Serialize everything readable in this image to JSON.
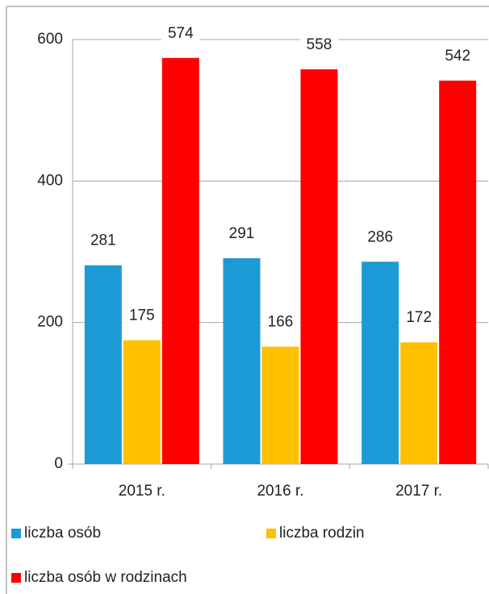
{
  "chart_data": {
    "type": "bar",
    "categories": [
      "2015 r.",
      "2016 r.",
      "2017 r."
    ],
    "series": [
      {
        "name": "liczba osób",
        "color": "#1b9ad6",
        "values": [
          281,
          291,
          286
        ]
      },
      {
        "name": "liczba rodzin",
        "color": "#ffc000",
        "values": [
          175,
          166,
          172
        ]
      },
      {
        "name": "liczba osób w rodzinach",
        "color": "#ff0000",
        "values": [
          574,
          558,
          542
        ]
      }
    ],
    "ylim": [
      0,
      600
    ],
    "yticks": [
      0,
      200,
      400,
      600
    ],
    "grid": true
  }
}
